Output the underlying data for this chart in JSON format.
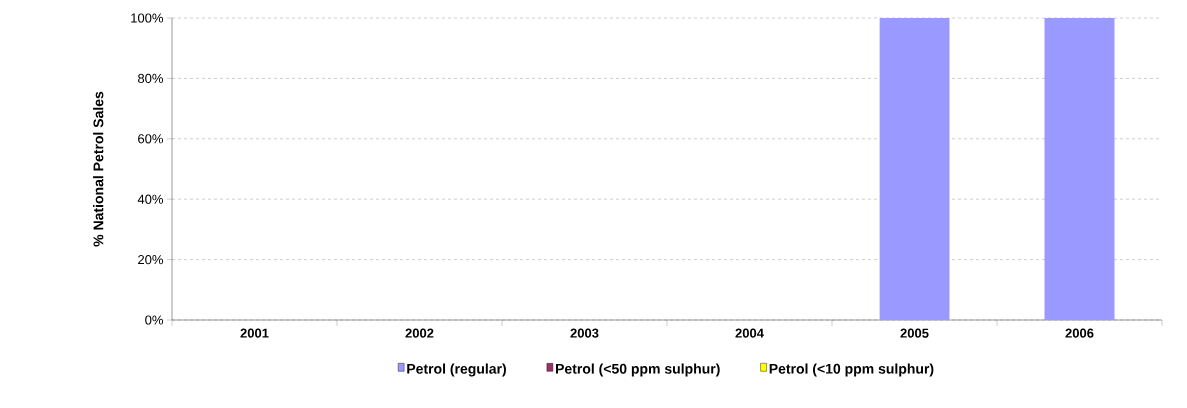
{
  "chart_data": {
    "type": "bar",
    "stacked": true,
    "ylabel": "% National Petrol Sales",
    "categories": [
      "2001",
      "2002",
      "2003",
      "2004",
      "2005",
      "2006"
    ],
    "series": [
      {
        "name": "Petrol (regular)",
        "color": "#9999ff",
        "values": [
          null,
          null,
          null,
          null,
          100,
          100
        ]
      },
      {
        "name": "Petrol (<50 ppm sulphur)",
        "color": "#993366",
        "values": [
          null,
          null,
          null,
          null,
          0,
          0
        ]
      },
      {
        "name": "Petrol (<10 ppm sulphur)",
        "color": "#ffff00",
        "values": [
          null,
          null,
          null,
          null,
          0,
          0
        ]
      }
    ],
    "ylim": [
      0,
      100
    ],
    "yticks": [
      {
        "value": 0,
        "label": "0%"
      },
      {
        "value": 20,
        "label": "20%"
      },
      {
        "value": 40,
        "label": "40%"
      },
      {
        "value": 60,
        "label": "60%"
      },
      {
        "value": 80,
        "label": "80%"
      },
      {
        "value": 100,
        "label": "100%"
      }
    ],
    "grid": "y",
    "legend": "bottom"
  }
}
